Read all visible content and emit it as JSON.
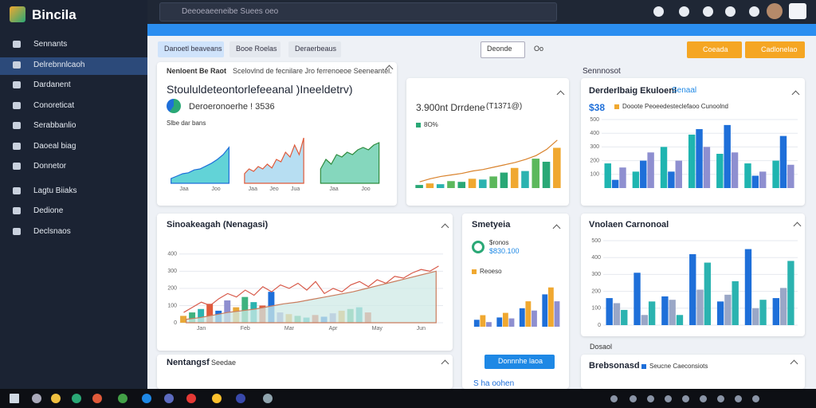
{
  "app": {
    "name": "Bincila"
  },
  "search": {
    "placeholder": "Deeoeaeeneibe Suees oeo"
  },
  "nav": [
    "Sennants",
    "Delrebnnlcaoh",
    "Dardanent",
    "Conoreticat",
    "Serabbanlio",
    "Daoeal biag",
    "Donnetor",
    "Lagtu Biiaks",
    "Dedione",
    "Declsnaos"
  ],
  "active_nav": 1,
  "tabs": [
    "Danoetl beaveans",
    "Booe Roelas",
    "Deraerbeaus"
  ],
  "active_tab": 0,
  "dropdown": "Deonde",
  "dropdown_extra": "Oo",
  "buttons": [
    "Coeada",
    "Cadlonelao"
  ],
  "section_label": "Sennnosot",
  "cards": [
    {
      "title": "Nenloent Be Raot",
      "header": "Scelovlnd de fecnilare Jro ferrenoeoe Seeneantel.",
      "heading": "Stoululdeteontorlefeeanal )Ineeldetrv)",
      "metric": "Deroeronoerhe ! 3536",
      "sub": "Slbe dar bans",
      "charts": [
        {
          "ylim": [
            0,
            10
          ],
          "xlabels": [
            "Jaa",
            "Joo"
          ],
          "series": [
            {
              "kind": "area",
              "color": "#1e6fd9",
              "fill": "#2ec4c9",
              "values": [
                1,
                1.5,
                2,
                2.2,
                2.8,
                3,
                3.6,
                4.2,
                5,
                6,
                7.5
              ]
            }
          ]
        },
        {
          "ylim": [
            0,
            10
          ],
          "xlabels": [
            "Jaa",
            "Jeo",
            "Jua"
          ],
          "series": [
            {
              "kind": "area",
              "color": "#e05a3a",
              "fill": "#9fd3ee",
              "values": [
                2,
                3,
                2.5,
                3.5,
                3,
                4,
                3.2,
                5,
                4.5,
                6.5,
                5.5,
                8,
                6,
                9.5
              ]
            }
          ]
        },
        {
          "ylim": [
            0,
            10
          ],
          "xlabels": [
            "Jaa",
            "Joo"
          ],
          "series": [
            {
              "kind": "area",
              "color": "#2e8b3e",
              "fill": "#5cc9a7",
              "values": [
                3,
                5,
                4,
                6,
                5.5,
                6.5,
                6,
                7,
                7.5,
                7,
                8,
                8.5
              ]
            }
          ]
        }
      ]
    },
    {
      "title": "3.900nt Drrdene",
      "note": "(T1371@)",
      "legend": "8O%",
      "chart": {
        "ylim": [
          0,
          70
        ],
        "series": [
          {
            "kind": "bar",
            "colors": [
              "#2aa876",
              "#f0a830",
              "#2bb3b0",
              "#5cb85c"
            ],
            "values": [
              4,
              6,
              5,
              9,
              8,
              12,
              11,
              15,
              20,
              26,
              22,
              38,
              34,
              52
            ]
          },
          {
            "kind": "line",
            "color": "#d9822b",
            "values": [
              8,
              12,
              15,
              17,
              19,
              22,
              24,
              27,
              30,
              33,
              37,
              42,
              50,
              62
            ]
          }
        ]
      }
    },
    {
      "title": "Derderlbaig Ekuloenl",
      "tag": "Senaal",
      "metric": "$38",
      "legend": "Dooote Peoeedesteclefaoo Cunoolnd",
      "chart": {
        "ylim": [
          0,
          500
        ],
        "yticks": [
          100,
          200,
          300,
          400,
          500
        ],
        "series": [
          {
            "kind": "bar",
            "color": "#1fb5b0",
            "values": [
              180,
              120,
              300,
              390,
              250,
              180,
              200
            ]
          },
          {
            "kind": "bar",
            "color": "#1e6fd9",
            "values": [
              60,
              200,
              120,
              430,
              460,
              90,
              380
            ]
          },
          {
            "kind": "bar",
            "color": "#8e8fd0",
            "values": [
              150,
              260,
              200,
              300,
              260,
              120,
              170
            ]
          }
        ]
      }
    },
    {
      "title": "Sinoakeagah (Nenagasi)",
      "chart": {
        "ylim": [
          0,
          450
        ],
        "yticks": [
          0,
          100,
          200,
          300,
          400
        ],
        "xlabels": [
          "Jan",
          "Feb",
          "Mar",
          "Apr",
          "May",
          "Jun"
        ],
        "series": [
          {
            "kind": "bar",
            "colors": [
              "#e8a838",
              "#3fb27f",
              "#2bb3b0",
              "#e05a3a",
              "#1e6fd9",
              "#8e8fd0"
            ],
            "values": [
              40,
              60,
              80,
              110,
              70,
              130,
              90,
              150,
              120,
              100,
              180,
              60,
              50,
              40,
              30,
              45,
              35,
              55,
              70,
              80,
              90,
              60
            ]
          },
          {
            "kind": "line",
            "color": "#d85a4a",
            "values": [
              60,
              90,
              120,
              100,
              140,
              170,
              150,
              190,
              160,
              210,
              180,
              220,
              200,
              230,
              190,
              240,
              170,
              200,
              180,
              220,
              240,
              210,
              250,
              230,
              270,
              260,
              290,
              310,
              300,
              330
            ]
          },
          {
            "kind": "area",
            "color": "#c97c5d",
            "fill": "#cfe9e6",
            "values": [
              20,
              30,
              45,
              60,
              70,
              80,
              95,
              110,
              120,
              135,
              150,
              165,
              180,
              200,
              220,
              240,
              260,
              280,
              300
            ]
          }
        ]
      }
    },
    {
      "title": "Smetyeia",
      "label": "$ronos",
      "metric": "$830.100",
      "legend": "Reoeso",
      "button": "Donnnhe laoa",
      "footer": "S ha oohen",
      "chart": {
        "ylim": [
          0,
          100
        ],
        "series": [
          {
            "kind": "bar",
            "color": "#1e6fd9",
            "values": [
              15,
              20,
              40,
              70
            ]
          },
          {
            "kind": "bar",
            "color": "#f0a830",
            "values": [
              25,
              30,
              55,
              85
            ]
          },
          {
            "kind": "bar",
            "color": "#8e8fd0",
            "values": [
              10,
              18,
              35,
              55
            ]
          }
        ]
      }
    },
    {
      "title": "Vnolaen Carnonoal",
      "chart": {
        "ylim": [
          0,
          500
        ],
        "yticks": [
          0,
          100,
          200,
          300,
          400,
          500
        ],
        "series": [
          {
            "kind": "bar",
            "color": "#1e6fd9",
            "values": [
              160,
              310,
              170,
              420,
              140,
              450,
              160
            ]
          },
          {
            "kind": "bar",
            "color": "#9aa7c7",
            "values": [
              130,
              60,
              150,
              210,
              180,
              100,
              220
            ]
          },
          {
            "kind": "bar",
            "color": "#2bb3b0",
            "values": [
              90,
              140,
              60,
              370,
              260,
              150,
              380
            ]
          }
        ]
      }
    },
    {
      "title": "Nentangsf",
      "tag": "Seedae"
    },
    {
      "title": "Brebsonasd",
      "legend": "Seucne Caeconsiots",
      "label": "Dosaol"
    }
  ]
}
